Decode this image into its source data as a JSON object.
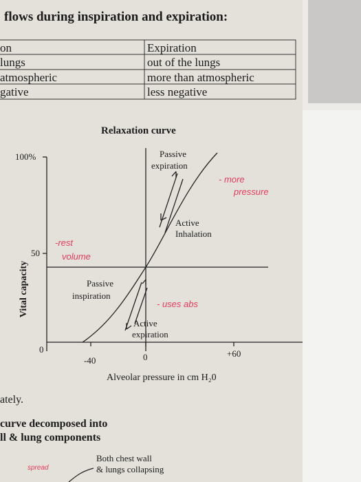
{
  "header": {
    "title": "flows during inspiration and expiration:"
  },
  "table": {
    "rows": [
      [
        "on",
        "Expiration"
      ],
      [
        "lungs",
        "out of the lungs"
      ],
      [
        "atmospheric",
        "more than atmospheric"
      ],
      [
        "gative",
        "less negative"
      ]
    ]
  },
  "figure": {
    "title": "Relaxation curve",
    "y_label": "Vital capacity",
    "y_ticks": [
      "100%",
      "50",
      "0"
    ],
    "x_ticks": [
      "-40",
      "0",
      "+60"
    ],
    "x_label": "Alveolar pressure in cm H₂0",
    "annotations": [
      "Passive",
      "expiration",
      "Active",
      "Inhalation",
      "Passive",
      "inspiration",
      "Active",
      "expiration"
    ],
    "handwriting": [
      "- more",
      "pressure",
      "-rest",
      "volume",
      "- uses abs"
    ]
  },
  "body": {
    "lines": [
      "ately.",
      "curve decomposed into",
      "ll & lung components"
    ]
  },
  "figure2": {
    "annotations": [
      "Both chest wall",
      "& lungs collapsing"
    ],
    "handwriting": [
      "spread"
    ]
  }
}
